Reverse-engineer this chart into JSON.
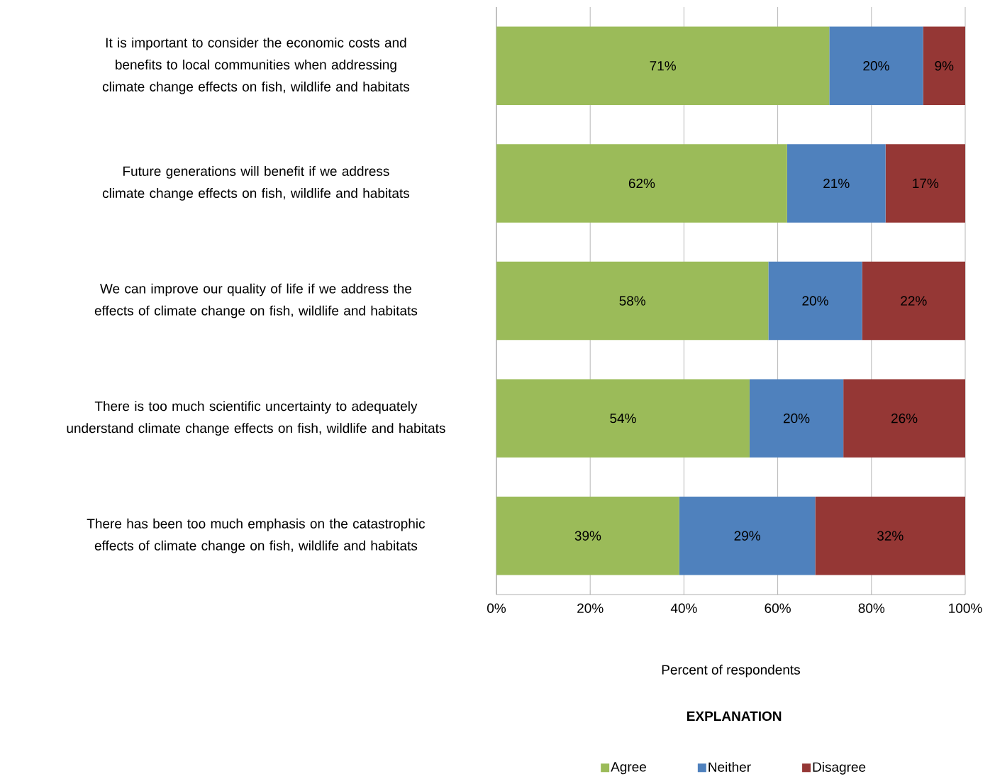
{
  "chart_data": {
    "type": "bar",
    "orientation": "horizontal",
    "stacked": true,
    "categories": [
      "It is important to consider the economic costs and benefits to local communities when addressing climate change effects on fish, wildlife and habitats",
      "Future generations will benefit if we address climate change effects on fish, wildlife and habitats",
      "We can improve our quality of life if we address the effects of climate change on fish, wildlife and habitats",
      "There is too much scientific uncertainty to adequately understand climate change effects on fish, wildlife and habitats",
      "There has been too much emphasis on the catastrophic effects of climate change on fish, wildlife and habitats"
    ],
    "series": [
      {
        "name": "Agree",
        "color": "#9bbb59",
        "values": [
          71,
          62,
          58,
          54,
          39
        ],
        "value_labels": [
          "71%",
          "62%",
          "58%",
          "54%",
          "39%"
        ]
      },
      {
        "name": "Neither",
        "color": "#4f81bd",
        "values": [
          20,
          21,
          20,
          20,
          29
        ],
        "value_labels": [
          "20%",
          "21%",
          "20%",
          "20%",
          "29%"
        ]
      },
      {
        "name": "Disagree",
        "color": "#953735",
        "values": [
          9,
          17,
          22,
          26,
          32
        ],
        "value_labels": [
          "9%",
          "17%",
          "22%",
          "26%",
          "32%"
        ]
      }
    ],
    "xlim": [
      0,
      100
    ],
    "xticks": [
      {
        "value": 0,
        "label": "0%"
      },
      {
        "value": 20,
        "label": "20%"
      },
      {
        "value": 40,
        "label": "40%"
      },
      {
        "value": 60,
        "label": "60%"
      },
      {
        "value": 80,
        "label": "80%"
      },
      {
        "value": 100,
        "label": "100%"
      }
    ],
    "xlabel": "Percent of respondents",
    "legend_title": "EXPLANATION",
    "legend": "bottom",
    "grid": "x"
  }
}
